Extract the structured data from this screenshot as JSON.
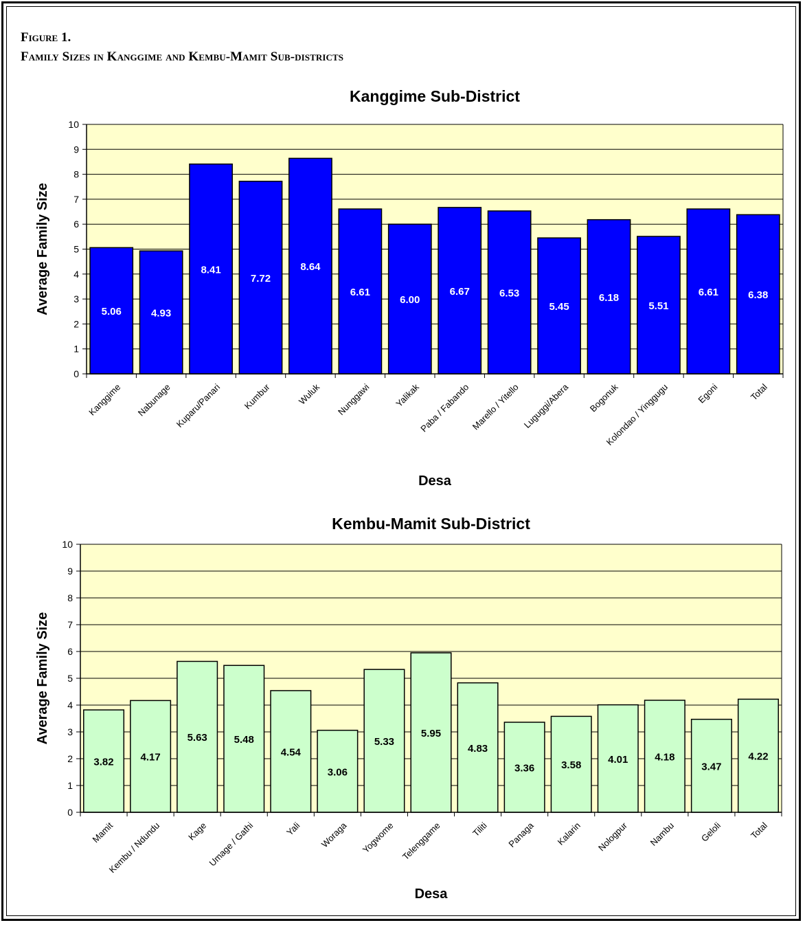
{
  "figure": {
    "label": "Figure 1.",
    "title": "Family Sizes in Kanggime and Kembu-Mamit Sub-districts"
  },
  "chart_data": [
    {
      "type": "bar",
      "title": "Kanggime Sub-District",
      "xlabel": "Desa",
      "ylabel": "Average Family Size",
      "ylim": [
        0,
        10
      ],
      "yticks": [
        0,
        1,
        2,
        3,
        4,
        5,
        6,
        7,
        8,
        9,
        10
      ],
      "grid": true,
      "legend": "none",
      "bar_color": "#0000ff",
      "label_color": "#ffffff",
      "plot_background": "#ffffcc",
      "categories": [
        "Kanggime",
        "Nabunage",
        "Kuparu/Panari",
        "Kumbur",
        "Wuluk",
        "Nunggawi",
        "Yalikak",
        "Paba / Fabando",
        "Marello / Yitello",
        "Luguggi/Abera",
        "Bogonuk",
        "Kolondao / Yinggugu",
        "Egoni",
        "Total"
      ],
      "values": [
        5.06,
        4.93,
        8.41,
        7.72,
        8.64,
        6.61,
        6.0,
        6.67,
        6.53,
        5.45,
        6.18,
        5.51,
        6.61,
        6.38
      ],
      "value_labels": [
        "5.06",
        "4.93",
        "8.41",
        "7.72",
        "8.64",
        "6.61",
        "6.00",
        "6.67",
        "6.53",
        "5.45",
        "6.18",
        "5.51",
        "6.61",
        "6.38"
      ]
    },
    {
      "type": "bar",
      "title": "Kembu-Mamit Sub-District",
      "xlabel": "Desa",
      "ylabel": "Average Family Size",
      "ylim": [
        0,
        10
      ],
      "yticks": [
        0,
        1,
        2,
        3,
        4,
        5,
        6,
        7,
        8,
        9,
        10
      ],
      "grid": true,
      "legend": "none",
      "bar_color": "#ccffcc",
      "label_color": "#000000",
      "plot_background": "#ffffcc",
      "categories": [
        "Mamit",
        "Kembu / Ndundu",
        "Kage",
        "Umage / Gathi",
        "Yali",
        "Woraga",
        "Yogwome",
        "Telenggame",
        "Tiliti",
        "Panaga",
        "Kalarin",
        "Nologpur",
        "Nambu",
        "Geloli",
        "Total"
      ],
      "values": [
        3.82,
        4.17,
        5.63,
        5.48,
        4.54,
        3.06,
        5.33,
        5.95,
        4.83,
        3.36,
        3.58,
        4.01,
        4.18,
        3.47,
        4.22
      ],
      "value_labels": [
        "3.82",
        "4.17",
        "5.63",
        "5.48",
        "4.54",
        "3.06",
        "5.33",
        "5.95",
        "4.83",
        "3.36",
        "3.58",
        "4.01",
        "4.18",
        "3.47",
        "4.22"
      ]
    }
  ]
}
